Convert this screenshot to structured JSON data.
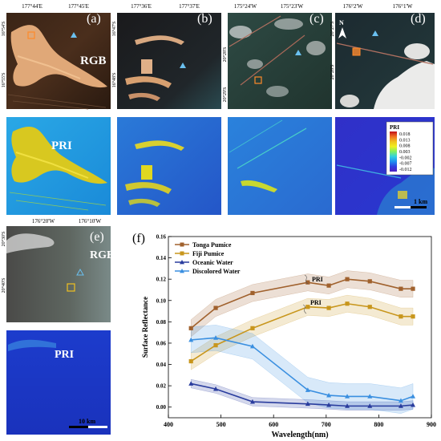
{
  "figure": {
    "panels": [
      {
        "label": "(a)",
        "layer": "RGB",
        "lon_ticks": [
          "177°44'E",
          "177°45'E"
        ],
        "lat_ticks": [
          "16°54'S",
          "16°55'S"
        ]
      },
      {
        "label": "(b)",
        "lon_ticks": [
          "177°36'E",
          "177°37'E"
        ],
        "lat_ticks": [
          "16°47'S",
          "16°48'S"
        ]
      },
      {
        "label": "(c)",
        "lon_ticks": [
          "175°24'W",
          "175°23'W"
        ],
        "lat_ticks": [
          "20°28'S",
          "20°29'S"
        ]
      },
      {
        "label": "(d)",
        "north": "N",
        "lon_ticks": [
          "176°2'W",
          "176°1'W"
        ],
        "lat_ticks": [
          "20°27'S",
          "20°28'S"
        ]
      },
      {
        "label": "(e)",
        "layer": "RGB",
        "lon_ticks": [
          "176°20'W",
          "176°10'W"
        ],
        "lat_ticks": [
          "20°30'S",
          "20°40'S"
        ]
      }
    ],
    "pri_label": "PRI",
    "scale_bar_small": "1 km",
    "scale_bar_large": "10 km",
    "colorbar": {
      "title": "PRI",
      "ticks": [
        "0.018",
        "0.013",
        "0.008",
        "0.003",
        "-0.002",
        "-0.007",
        "-0.012"
      ],
      "colors": [
        "#c0101a",
        "#f07020",
        "#f0c020",
        "#f0f020",
        "#80f060",
        "#30d0e0",
        "#2090f0",
        "#3040e0",
        "#5020c0"
      ]
    },
    "palette": {
      "tonga": "#a0612d",
      "fiji": "#c8961c",
      "oceanic": "#2a3d9e",
      "discolored": "#3a8fe0"
    }
  },
  "chart_data": {
    "type": "line",
    "panel_label": "(f)",
    "xlabel": "Wavelength(nm)",
    "ylabel": "Surface Reflectance",
    "xlim": [
      400,
      900
    ],
    "ylim": [
      -0.01,
      0.16
    ],
    "xticks": [
      "400",
      "500",
      "600",
      "700",
      "800",
      "900"
    ],
    "yticks": [
      "0.00",
      "0.02",
      "0.04",
      "0.06",
      "0.08",
      "0.10",
      "0.12",
      "0.14",
      "0.16"
    ],
    "x": [
      443,
      490,
      560,
      665,
      705,
      740,
      783,
      842,
      865
    ],
    "series": [
      {
        "name": "Tonga Pumice",
        "color": "#a0612d",
        "marker": "square",
        "values": [
          0.074,
          0.093,
          0.107,
          0.117,
          0.114,
          0.12,
          0.118,
          0.111,
          0.111
        ],
        "band": 0.008
      },
      {
        "name": "Fiji Pumice",
        "color": "#c8961c",
        "marker": "square",
        "values": [
          0.043,
          0.058,
          0.074,
          0.094,
          0.093,
          0.097,
          0.094,
          0.085,
          0.085
        ],
        "band": 0.008
      },
      {
        "name": "Oceanic Water",
        "color": "#2a3d9e",
        "marker": "triangle",
        "values": [
          0.022,
          0.017,
          0.005,
          0.003,
          0.002,
          0.001,
          0.001,
          0.001,
          0.002
        ],
        "band": 0.004
      },
      {
        "name": "Discolored Water",
        "color": "#3a8fe0",
        "marker": "triangle",
        "values": [
          0.063,
          0.065,
          0.057,
          0.016,
          0.011,
          0.01,
          0.01,
          0.006,
          0.01
        ],
        "band": 0.012
      }
    ],
    "annotations": [
      "PRI",
      "PRI"
    ],
    "legend": "top-left"
  }
}
